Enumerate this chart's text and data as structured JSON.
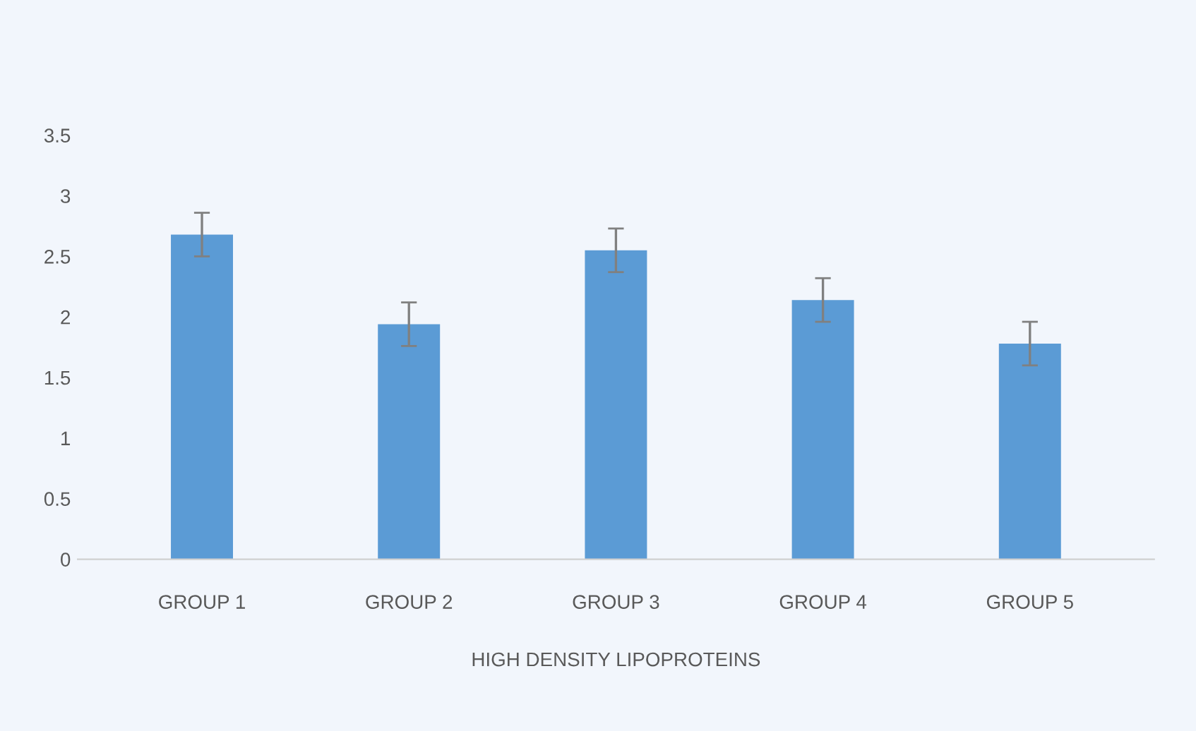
{
  "chart_data": {
    "type": "bar",
    "xlabel": "HIGH DENSITY LIPOPROTEINS",
    "categories": [
      "GROUP 1",
      "GROUP 2",
      "GROUP 3",
      "GROUP 4",
      "GROUP 5"
    ],
    "values": [
      2.68,
      1.94,
      2.55,
      2.14,
      1.78
    ],
    "errors": [
      0.18,
      0.18,
      0.18,
      0.18,
      0.18
    ],
    "color": "#5b9bd5",
    "ylim": [
      0,
      3.5
    ],
    "yticks": [
      0,
      0.5,
      1,
      1.5,
      2,
      2.5,
      3,
      3.5
    ],
    "grid": false,
    "legend": false
  }
}
